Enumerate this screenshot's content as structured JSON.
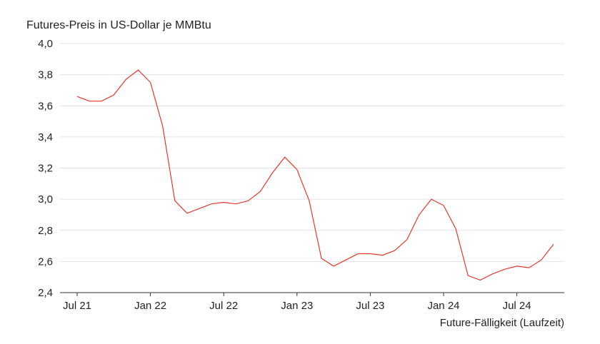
{
  "chart_data": {
    "type": "line",
    "ylabel": "Futures-Preis in US-Dollar je MMBtu",
    "xlabel": "Future-Fälligkeit (Laufzeit)",
    "ylim": [
      2.4,
      4.0
    ],
    "y_ticks": [
      4.0,
      3.8,
      3.6,
      3.4,
      3.2,
      3.0,
      2.8,
      2.6,
      2.4
    ],
    "y_tick_labels": [
      "4,0",
      "3,8",
      "3,6",
      "3,4",
      "3,2",
      "3,0",
      "2,8",
      "2,6",
      "2,4"
    ],
    "x_tick_labels": [
      "Jul 21",
      "Jan 22",
      "Jul 22",
      "Jan 23",
      "Jul 23",
      "Jan 24",
      "Jul 24"
    ],
    "grid": true,
    "colors": {
      "line": "#e8372c",
      "grid": "#e3e3e3",
      "axis": "#333333"
    },
    "series": [
      {
        "values": [
          3.66,
          3.63,
          3.63,
          3.67,
          3.77,
          3.83,
          3.75,
          3.47,
          2.99,
          2.91,
          2.94,
          2.97,
          2.98,
          2.97,
          2.99,
          3.05,
          3.17,
          3.27,
          3.19,
          2.99,
          2.62,
          2.57,
          2.61,
          2.65,
          2.65,
          2.64,
          2.67,
          2.74,
          2.9,
          3.0,
          2.96,
          2.81,
          2.51,
          2.48,
          2.52,
          2.55,
          2.57,
          2.56,
          2.61,
          2.71
        ]
      }
    ]
  }
}
